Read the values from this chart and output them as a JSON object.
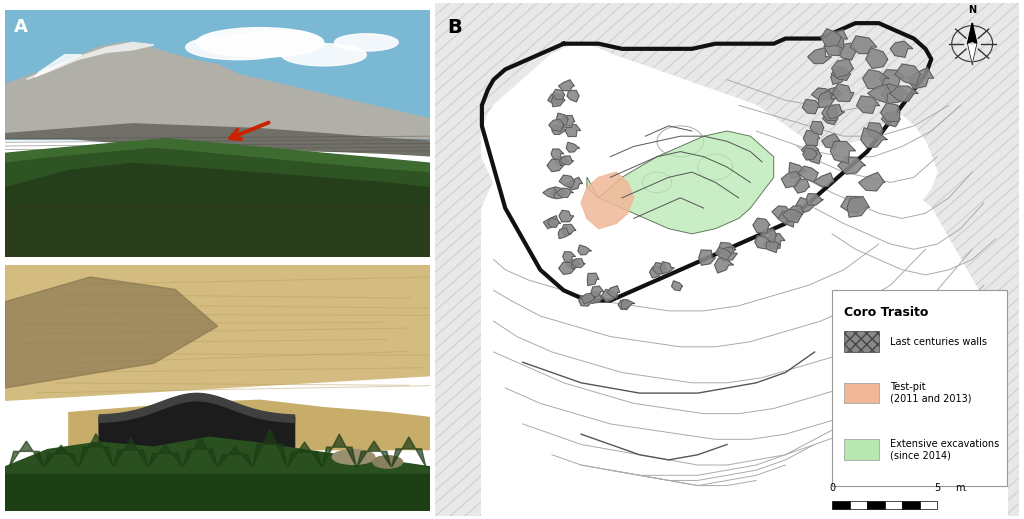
{
  "panel_a_label": "A",
  "panel_b_label": "B",
  "title_text": "Coro Trasito",
  "arrow_color": "#cc2200",
  "excavation_green": "#b8e8b0",
  "testpit_peach": "#f0b899",
  "legend_wall_label": "Last centuries walls",
  "legend_tp_label": "Test-pit\n(2011 and 2013)",
  "legend_exc_label": "Extensive excavations\n(since 2014)",
  "scale_0": "0",
  "scale_5": "5",
  "scale_m": "m."
}
